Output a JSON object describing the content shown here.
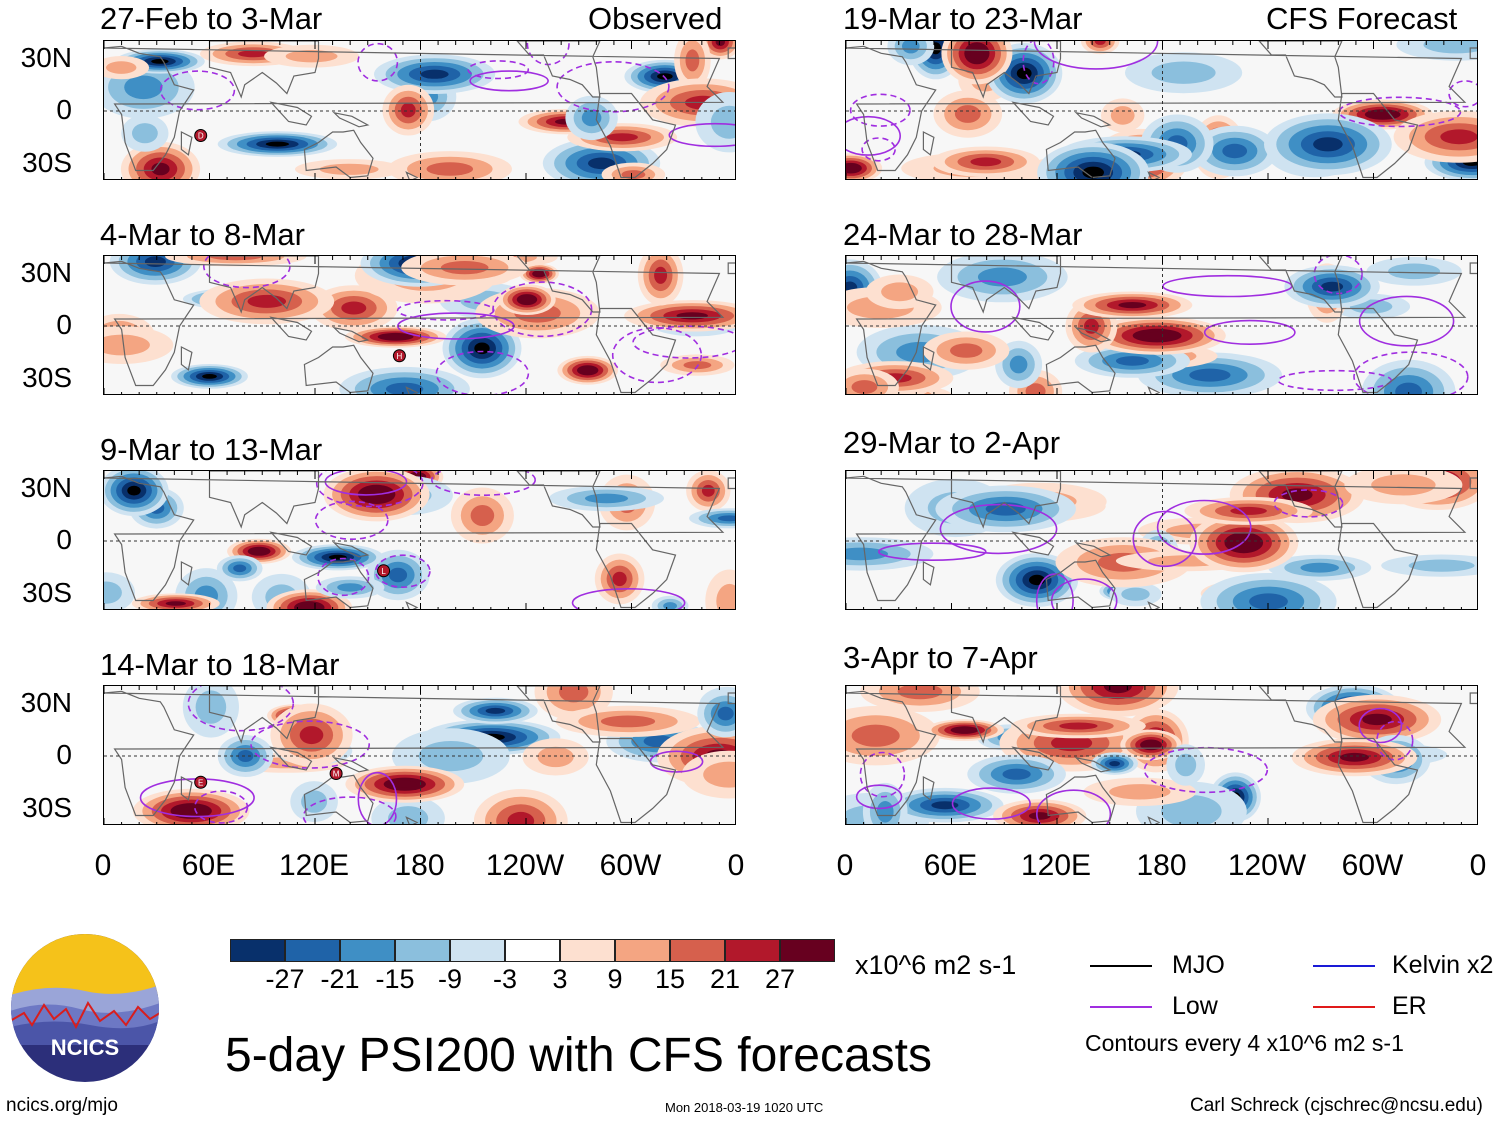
{
  "left_header": "Observed",
  "right_header": "CFS Forecast",
  "left_panels": [
    {
      "title": "27-Feb to 3-Mar"
    },
    {
      "title": "4-Mar to 8-Mar"
    },
    {
      "title": "9-Mar to 13-Mar"
    },
    {
      "title": "14-Mar to 18-Mar"
    }
  ],
  "right_panels": [
    {
      "title": "19-Mar to 23-Mar"
    },
    {
      "title": "24-Mar to 28-Mar"
    },
    {
      "title": "29-Mar to 2-Apr"
    },
    {
      "title": "3-Apr to 7-Apr"
    }
  ],
  "lat_labels": [
    "30N",
    "0",
    "30S"
  ],
  "lon_labels": [
    "0",
    "60E",
    "120E",
    "180",
    "120W",
    "60W",
    "0"
  ],
  "colorbar": {
    "colors": [
      "#08306b",
      "#1f63a8",
      "#3f8fc5",
      "#8bbfdd",
      "#cfe3f1",
      "#ffffff",
      "#fde0d0",
      "#f4a582",
      "#d6604d",
      "#b2182b",
      "#67001f"
    ],
    "labels": [
      "-27",
      "-21",
      "-15",
      "-9",
      "-3",
      "3",
      "9",
      "15",
      "21",
      "27"
    ],
    "units": "x10^6 m2 s-1"
  },
  "legend": {
    "items": [
      {
        "label": "MJO",
        "color": "#000000"
      },
      {
        "label": "Kelvin x2",
        "color": "#1a1ad6"
      },
      {
        "label": "Low",
        "color": "#a02ee0"
      },
      {
        "label": "ER",
        "color": "#e01a1a"
      }
    ],
    "note": "Contours every 4 x10^6 m2 s-1"
  },
  "main_title": "5-day PSI200 with CFS forecasts",
  "logo_text": "NCICS",
  "footer": {
    "url": "ncics.org/mjo",
    "timestamp": "Mon 2018-03-19 1020 UTC",
    "credit": "Carl Schreck (cjschrec@ncsu.edu)"
  },
  "storm_markers": [
    {
      "panel": 0,
      "lon": 55,
      "lat": -14,
      "letter": "D"
    },
    {
      "panel": 1,
      "lon": 168,
      "lat": -17,
      "letter": "H"
    },
    {
      "panel": 2,
      "lon": 159,
      "lat": -17,
      "letter": "L"
    },
    {
      "panel": 3,
      "lon": 55,
      "lat": -15,
      "letter": "E"
    },
    {
      "panel": 3,
      "lon": 132,
      "lat": -10,
      "letter": "M"
    }
  ]
}
